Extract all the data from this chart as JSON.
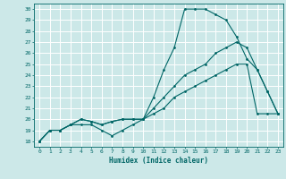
{
  "xlabel": "Humidex (Indice chaleur)",
  "bg_color": "#cce8e8",
  "grid_color": "#ffffff",
  "line_color": "#006666",
  "xlim": [
    -0.5,
    23.5
  ],
  "ylim": [
    17.5,
    30.5
  ],
  "xticks": [
    0,
    1,
    2,
    3,
    4,
    5,
    6,
    7,
    8,
    9,
    10,
    11,
    12,
    13,
    14,
    15,
    16,
    17,
    18,
    19,
    20,
    21,
    22,
    23
  ],
  "yticks": [
    18,
    19,
    20,
    21,
    22,
    23,
    24,
    25,
    26,
    27,
    28,
    29,
    30
  ],
  "line1_x": [
    0,
    1,
    2,
    3,
    4,
    5,
    6,
    7,
    8,
    9,
    10,
    11,
    12,
    13,
    14,
    15,
    16,
    17,
    18,
    19,
    20,
    21,
    22,
    23
  ],
  "line1_y": [
    18,
    19,
    19,
    19.5,
    19.5,
    19.5,
    19,
    18.5,
    19,
    19.5,
    20,
    22,
    24.5,
    26.5,
    30,
    30,
    30,
    29.5,
    29,
    27.5,
    25.5,
    24.5,
    22.5,
    20.5
  ],
  "line2_x": [
    0,
    1,
    2,
    3,
    4,
    5,
    6,
    7,
    8,
    9,
    10,
    11,
    12,
    13,
    14,
    15,
    16,
    17,
    18,
    19,
    20,
    21,
    22,
    23
  ],
  "line2_y": [
    18,
    19,
    19,
    19.5,
    20,
    19.8,
    19.5,
    19.8,
    20,
    20,
    20,
    20.5,
    21,
    22,
    22.5,
    23,
    23.5,
    24,
    24.5,
    25,
    25,
    20.5,
    20.5,
    20.5
  ],
  "line3_x": [
    0,
    1,
    2,
    3,
    4,
    5,
    6,
    7,
    8,
    9,
    10,
    11,
    12,
    13,
    14,
    15,
    16,
    17,
    18,
    19,
    20,
    21,
    22,
    23
  ],
  "line3_y": [
    18,
    19,
    19,
    19.5,
    20,
    19.8,
    19.5,
    19.8,
    20,
    20,
    20,
    21,
    22,
    23,
    24,
    24.5,
    25,
    26,
    26.5,
    27,
    26.5,
    24.5,
    22.5,
    20.5
  ]
}
